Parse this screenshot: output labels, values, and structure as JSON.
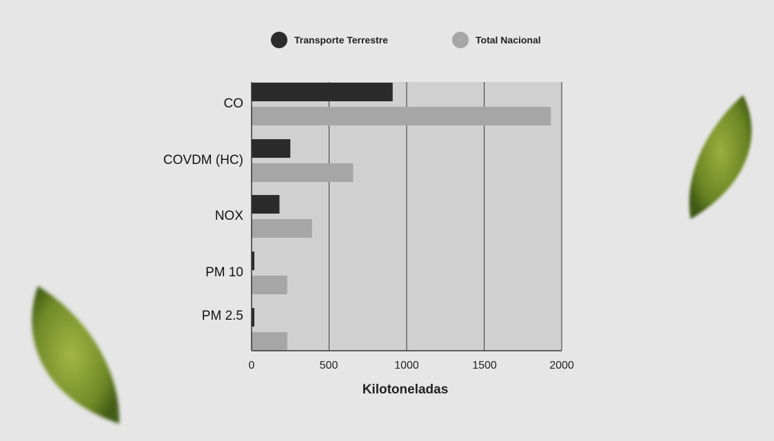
{
  "chart_data": {
    "type": "bar",
    "orientation": "horizontal",
    "categories": [
      "CO",
      "COVDM (HC)",
      "NOX",
      "PM 10",
      "PM 2.5"
    ],
    "series": [
      {
        "name": "Transporte Terrestre",
        "values": [
          910,
          250,
          180,
          18,
          18
        ]
      },
      {
        "name": "Total Nacional",
        "values": [
          1930,
          655,
          390,
          230,
          230
        ]
      }
    ],
    "xlabel": "Kilotoneladas",
    "ylabel": "",
    "xlim": [
      0,
      2000
    ],
    "xticks": [
      "0",
      "500",
      "1000",
      "1500",
      "2000"
    ],
    "grid": true,
    "legend_position": "top"
  },
  "colors": {
    "background": "#e6e6e6",
    "plot_background": "#d0d0d0",
    "series_dark": "#2b2b2b",
    "series_light": "#a6a6a6",
    "gridline": "#333333"
  },
  "decorations": [
    "leaf-icon",
    "leaf-icon"
  ]
}
